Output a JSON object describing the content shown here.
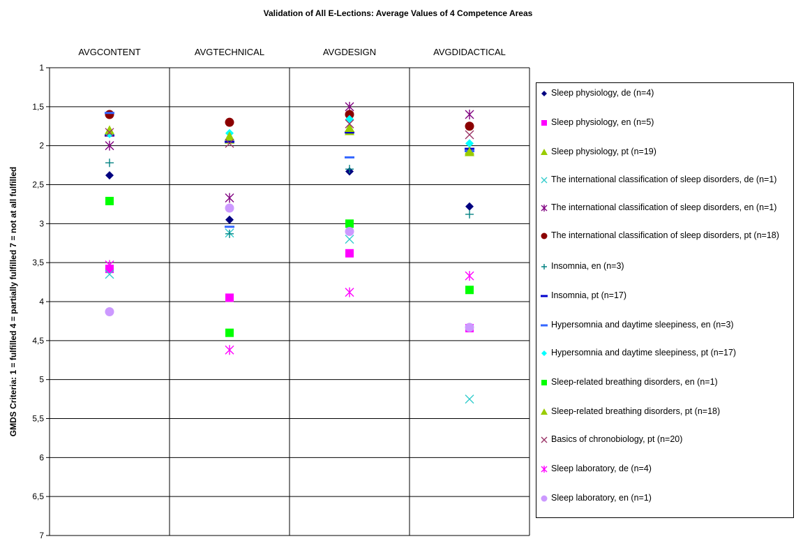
{
  "chart_data": {
    "type": "scatter",
    "title": "Validation of All E-Lections: Average Values of 4 Competence Areas",
    "ylabel": "GMDS Criteria: 1 = fulfilled  4 = partially fulfilled  7 = not at all fulfilled",
    "categories": [
      "AVGCONTENT",
      "AVGTECHNICAL",
      "AVGDESIGN",
      "AVGDIDACTICAL"
    ],
    "ylim": [
      1,
      7
    ],
    "y_inverted": true,
    "yticks": [
      "1",
      "1,5",
      "2",
      "2,5",
      "3",
      "3,5",
      "4",
      "4,5",
      "5",
      "5,5",
      "6",
      "6,5",
      "7"
    ],
    "legend_position": "right",
    "series": [
      {
        "name": "Sleep physiology, de (n=4)",
        "marker": "diamond",
        "color": "#000080",
        "values": [
          2.38,
          2.95,
          2.33,
          2.78
        ]
      },
      {
        "name": "Sleep physiology, en (n=5)",
        "marker": "square",
        "color": "#ff00ff",
        "values": [
          3.58,
          3.95,
          3.38,
          4.34
        ]
      },
      {
        "name": "Sleep physiology, pt (n=19)",
        "marker": "triangle",
        "color": "#99cc00",
        "values": [
          1.82,
          1.92,
          1.81,
          2.06
        ]
      },
      {
        "name": "The international classification of sleep disorders, de (n=1)",
        "marker": "x",
        "color": "#33cccc",
        "values": [
          3.65,
          3.12,
          3.2,
          5.25
        ]
      },
      {
        "name": "The international classification of sleep disorders, en (n=1)",
        "marker": "asterisk",
        "color": "#800080",
        "values": [
          2.0,
          2.67,
          1.5,
          1.6
        ]
      },
      {
        "name": "The international classification of sleep disorders, pt (n=18)",
        "marker": "circle",
        "color": "#8b0000",
        "values": [
          1.6,
          1.7,
          1.6,
          1.75
        ]
      },
      {
        "name": "Insomnia, en (n=3)",
        "marker": "plus",
        "color": "#008080",
        "values": [
          2.22,
          3.13,
          2.3,
          2.88
        ]
      },
      {
        "name": "Insomnia, pt (n=17)",
        "marker": "dash",
        "color": "#0000cd",
        "values": [
          1.87,
          1.95,
          1.83,
          2.04
        ]
      },
      {
        "name": "Hypersomnia and daytime sleepiness, en (n=3)",
        "marker": "dash",
        "color": "#3366ff",
        "values": [
          1.58,
          3.04,
          2.15,
          2.07
        ]
      },
      {
        "name": "Hypersomnia and daytime sleepiness, pt (n=17)",
        "marker": "diamond",
        "color": "#00ffff",
        "values": [
          1.85,
          1.84,
          1.66,
          1.97
        ]
      },
      {
        "name": "Sleep-related breathing disorders, en (n=1)",
        "marker": "square",
        "color": "#00ff00",
        "values": [
          2.71,
          4.4,
          3.0,
          3.85
        ]
      },
      {
        "name": "Sleep-related breathing disorders, pt (n=18)",
        "marker": "triangle",
        "color": "#99cc00",
        "values": [
          1.8,
          1.88,
          1.77,
          2.08
        ]
      },
      {
        "name": "Basics of chronobiology, pt (n=20)",
        "marker": "x",
        "color": "#993366",
        "values": [
          1.83,
          1.97,
          1.72,
          1.86
        ]
      },
      {
        "name": "Sleep laboratory, de (n=4)",
        "marker": "asterisk",
        "color": "#ff00ff",
        "values": [
          3.53,
          4.62,
          3.88,
          3.67
        ]
      },
      {
        "name": "Sleep laboratory, en (n=1)",
        "marker": "circle",
        "color": "#cc99ff",
        "values": [
          4.13,
          2.8,
          3.1,
          4.33
        ]
      }
    ]
  }
}
